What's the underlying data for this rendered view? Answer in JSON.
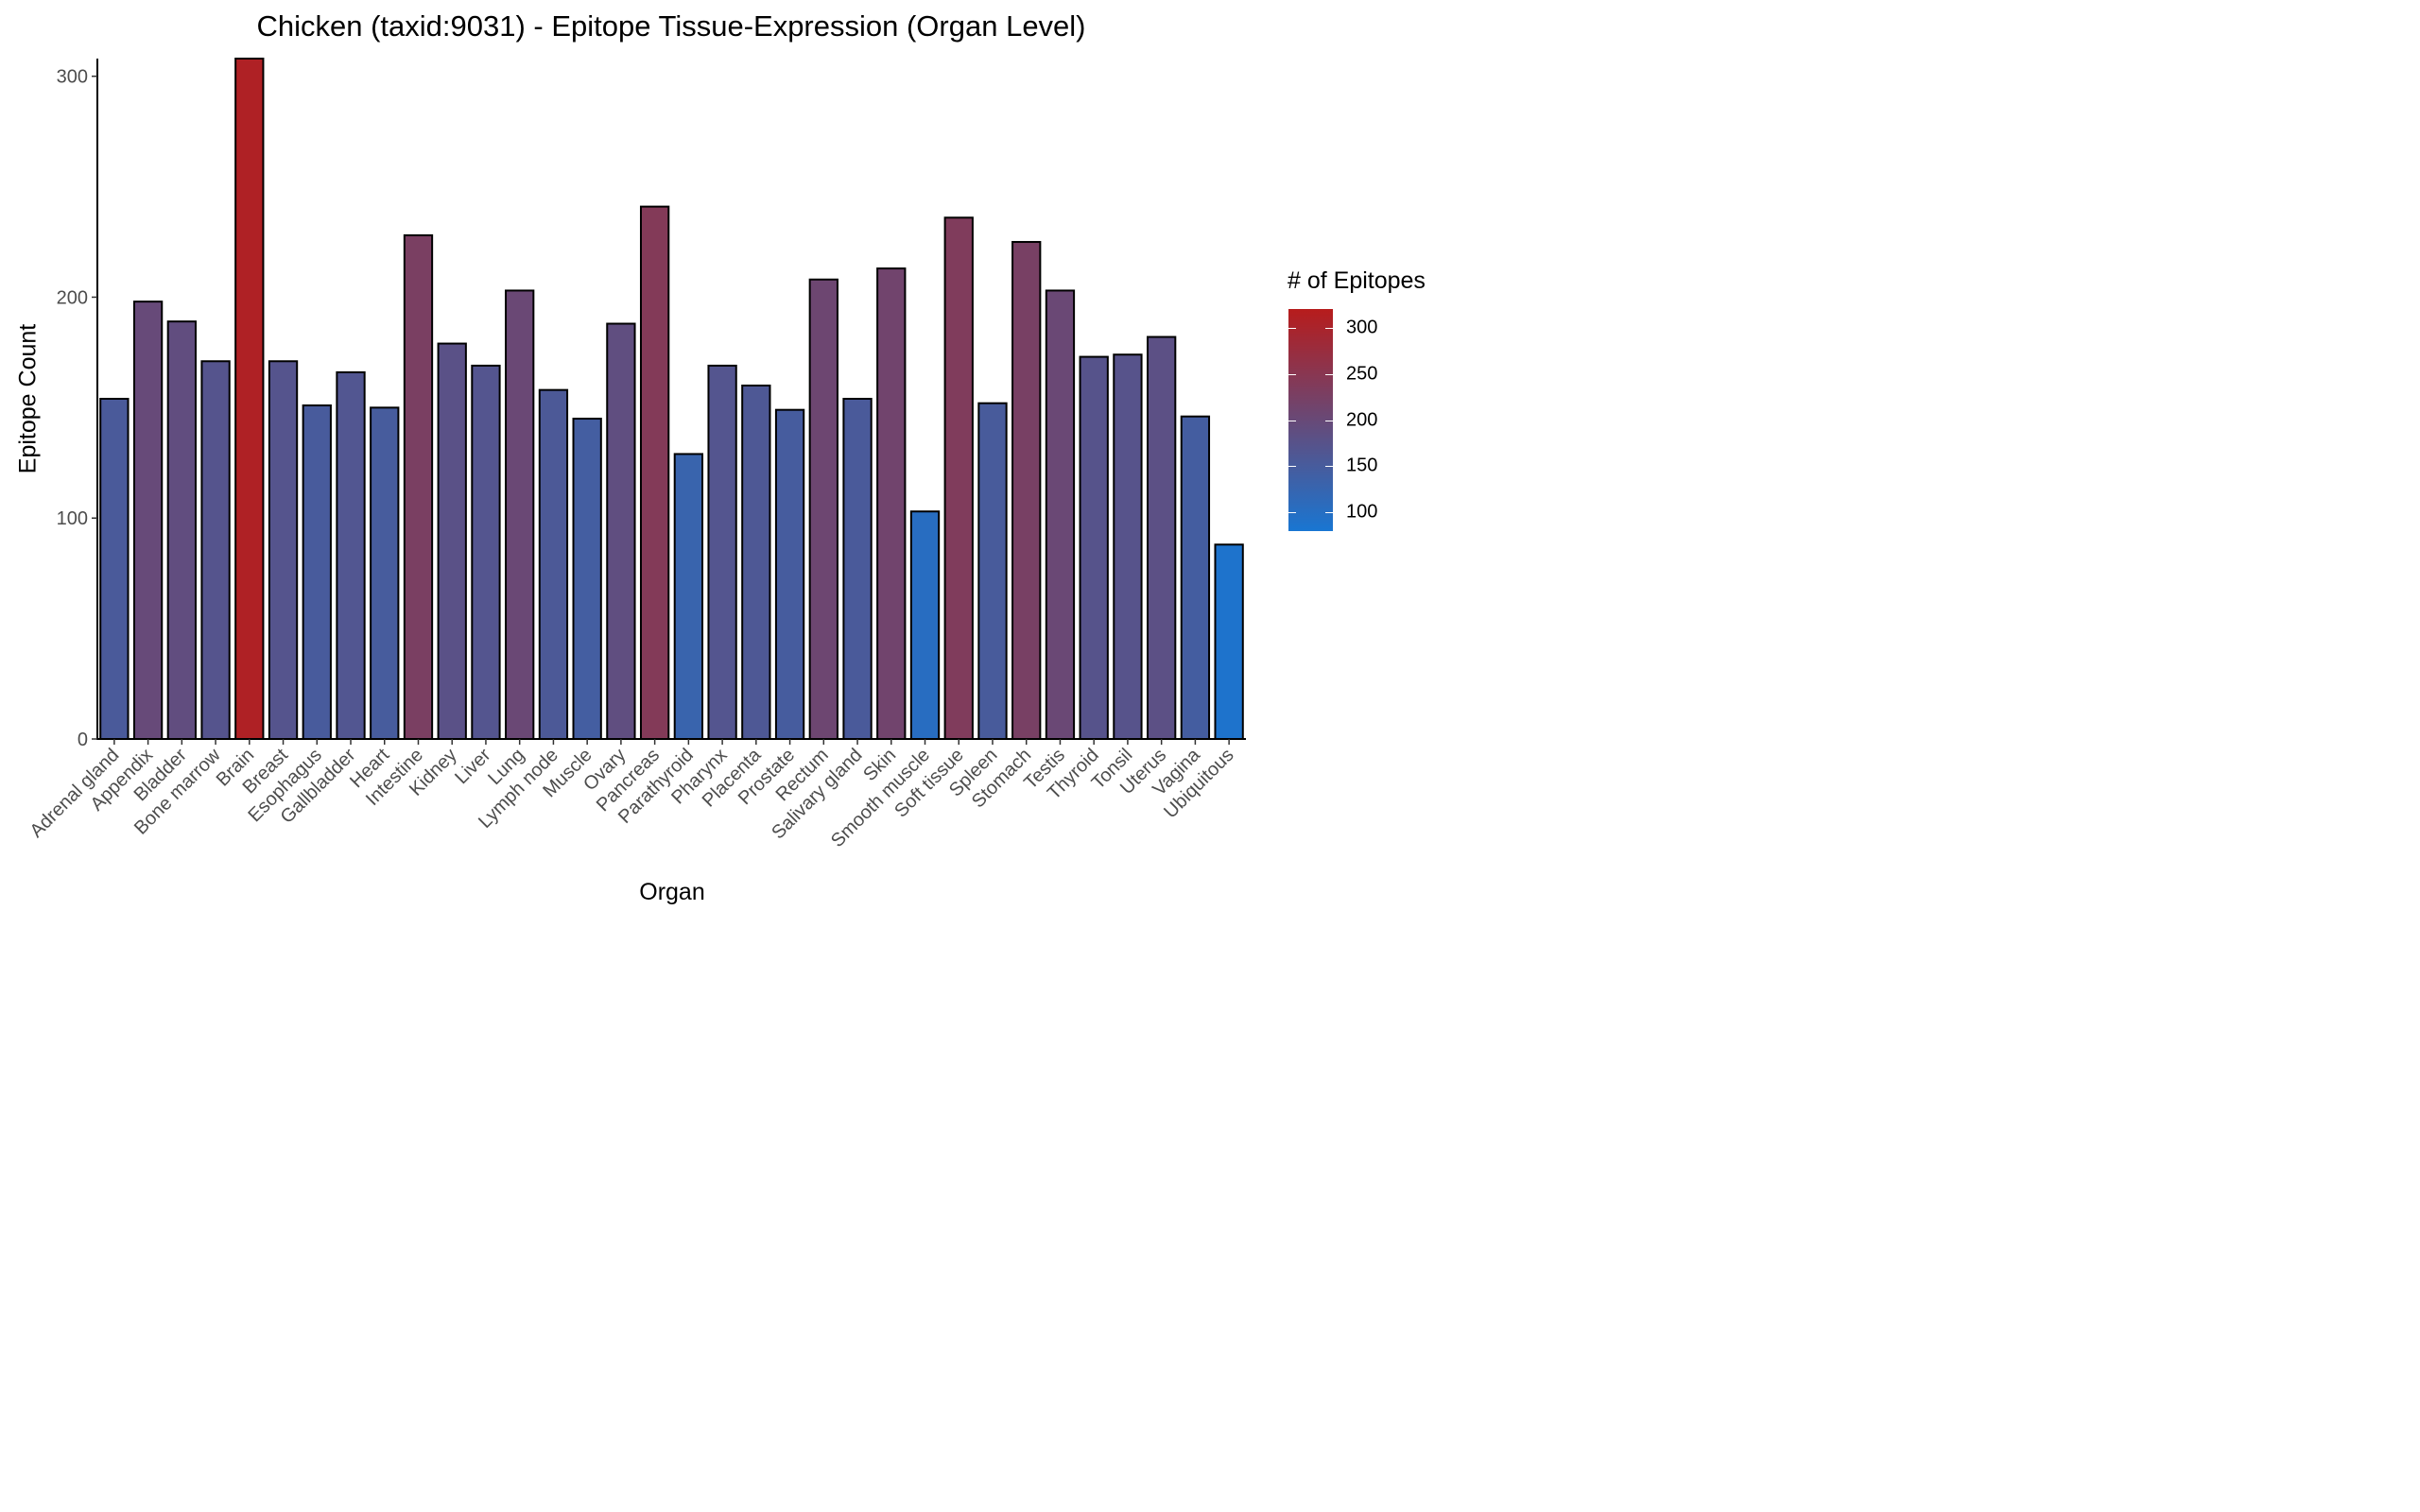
{
  "chart_data": {
    "type": "bar",
    "title": "Chicken (taxid:9031) - Epitope Tissue-Expression (Organ Level)",
    "xlabel": "Organ",
    "ylabel": "Epitope Count",
    "ylim": [
      0,
      308
    ],
    "yticks": [
      "0",
      "100",
      "200",
      "300"
    ],
    "categories": [
      "Adrenal gland",
      "Appendix",
      "Bladder",
      "Bone marrow",
      "Brain",
      "Breast",
      "Esophagus",
      "Gallbladder",
      "Heart",
      "Intestine",
      "Kidney",
      "Liver",
      "Lung",
      "Lymph node",
      "Muscle",
      "Ovary",
      "Pancreas",
      "Parathyroid",
      "Pharynx",
      "Placenta",
      "Prostate",
      "Rectum",
      "Salivary gland",
      "Skin",
      "Smooth muscle",
      "Soft tissue",
      "Spleen",
      "Stomach",
      "Testis",
      "Thyroid",
      "Tonsil",
      "Uterus",
      "Vagina",
      "Ubiquitous"
    ],
    "values": [
      154,
      198,
      189,
      171,
      308,
      171,
      151,
      166,
      150,
      228,
      179,
      169,
      203,
      158,
      145,
      188,
      241,
      129,
      169,
      160,
      149,
      208,
      154,
      213,
      103,
      236,
      152,
      225,
      203,
      173,
      174,
      182,
      146,
      88
    ],
    "grid": false,
    "color_scale": {
      "low": "#1976d2",
      "high": "#b71c1c",
      "min": 80,
      "max": 320
    },
    "legend": {
      "title": "# of Epitopes",
      "position": "right",
      "labels": [
        "300",
        "250",
        "200",
        "150",
        "100"
      ]
    }
  }
}
